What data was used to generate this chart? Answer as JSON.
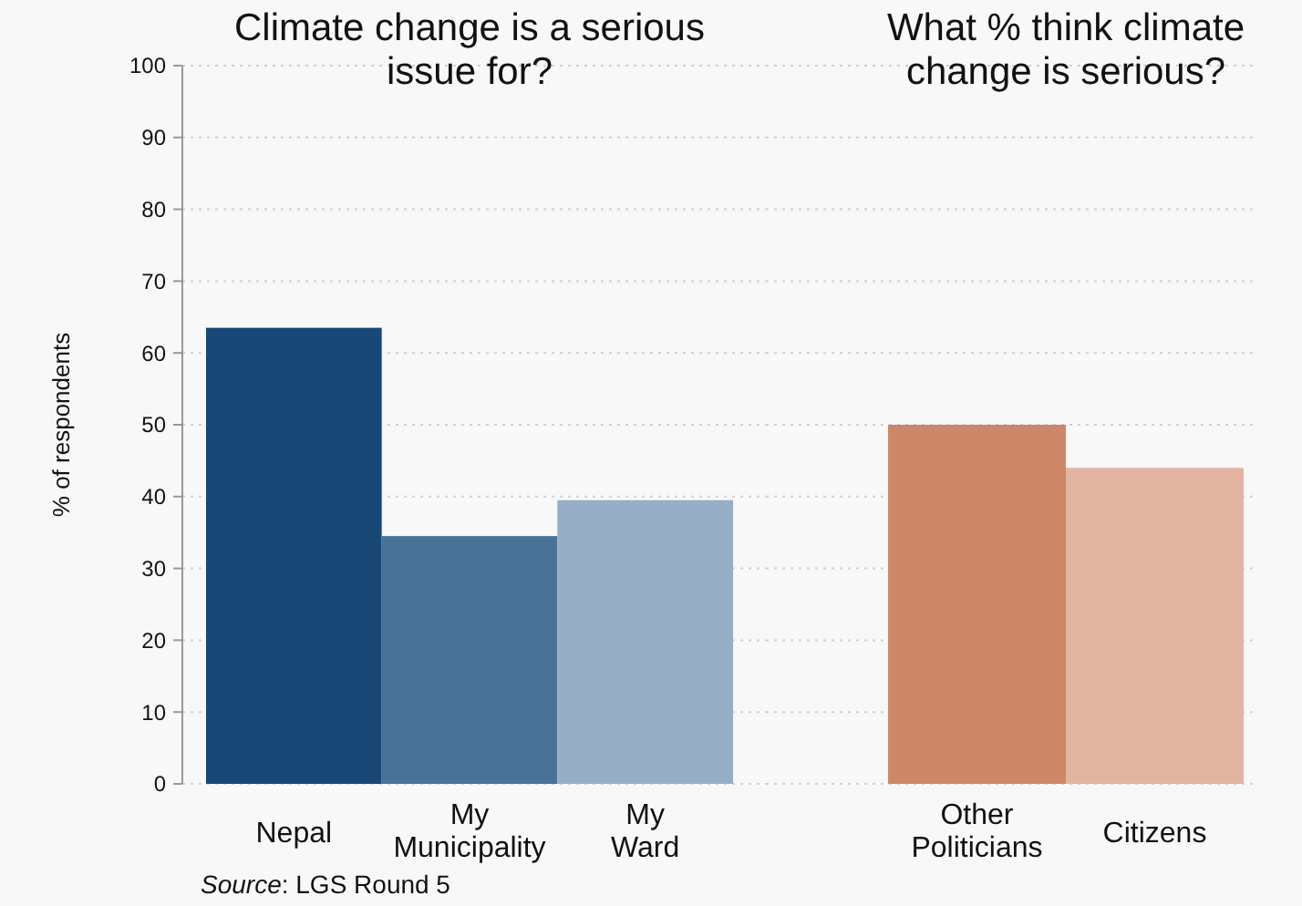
{
  "chart_data": [
    {
      "type": "bar",
      "title": "Climate change is a serious issue for?",
      "ylabel": "% of respondents",
      "categories": [
        "Nepal",
        "My Municipality",
        "My Ward"
      ],
      "colors": [
        "#1a4876",
        "#4a7298",
        "#98aec6"
      ],
      "values": [
        63.5,
        34.5,
        39.5
      ],
      "ylim": [
        0,
        100
      ],
      "yticks": [
        0,
        10,
        20,
        30,
        40,
        50,
        60,
        70,
        80,
        90,
        100
      ],
      "grid": "y",
      "annotations": [
        "Source: LGS Round 5"
      ]
    },
    {
      "type": "bar",
      "title": "What % think climate change is serious?",
      "categories": [
        "Other Politicians",
        "Citizens"
      ],
      "colors": [
        "#cd8869",
        "#e2b5a2"
      ],
      "values": [
        50,
        44
      ],
      "ylim": [
        0,
        100
      ],
      "yticks": [
        0,
        10,
        20,
        30,
        40,
        50,
        60,
        70,
        80,
        90,
        100
      ],
      "grid": "y",
      "tick_labels": "x"
    }
  ]
}
